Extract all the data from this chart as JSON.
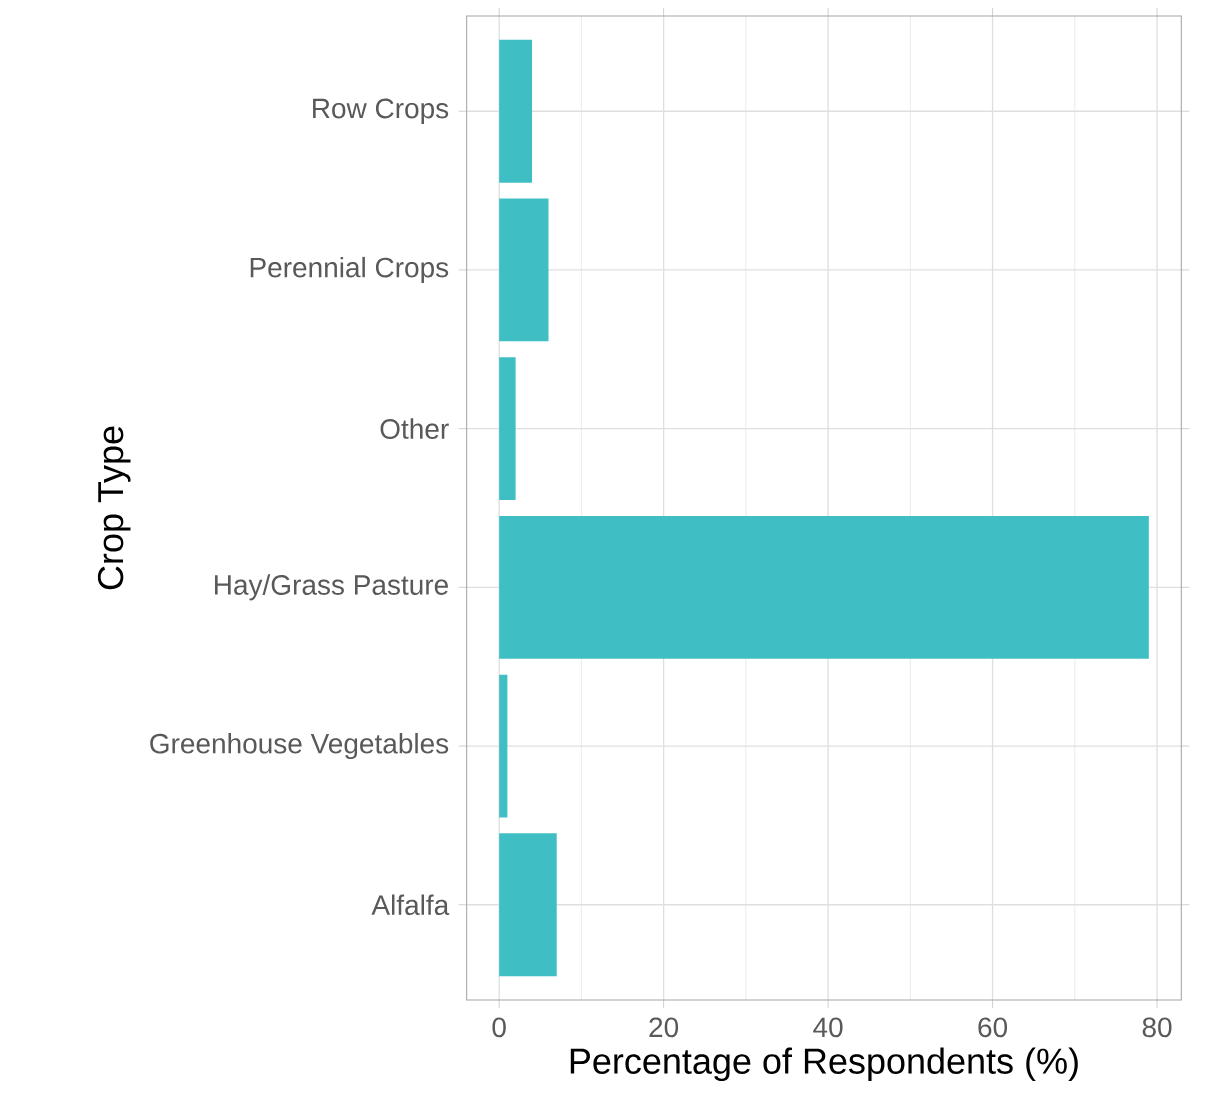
{
  "chart_data": {
    "type": "bar",
    "orientation": "horizontal",
    "xlabel": "Percentage of Respondents (%)",
    "ylabel": "Crop Type",
    "categories": [
      "Row Crops",
      "Perennial Crops",
      "Other",
      "Hay/Grass Pasture",
      "Greenhouse Vegetables",
      "Alfalfa"
    ],
    "values": [
      4,
      6,
      2,
      79,
      1,
      7
    ],
    "color": "#3fbfc4",
    "xlim": [
      -3.95,
      82.95
    ],
    "xticks": [
      0,
      20,
      40,
      60,
      80
    ],
    "grid": true
  }
}
